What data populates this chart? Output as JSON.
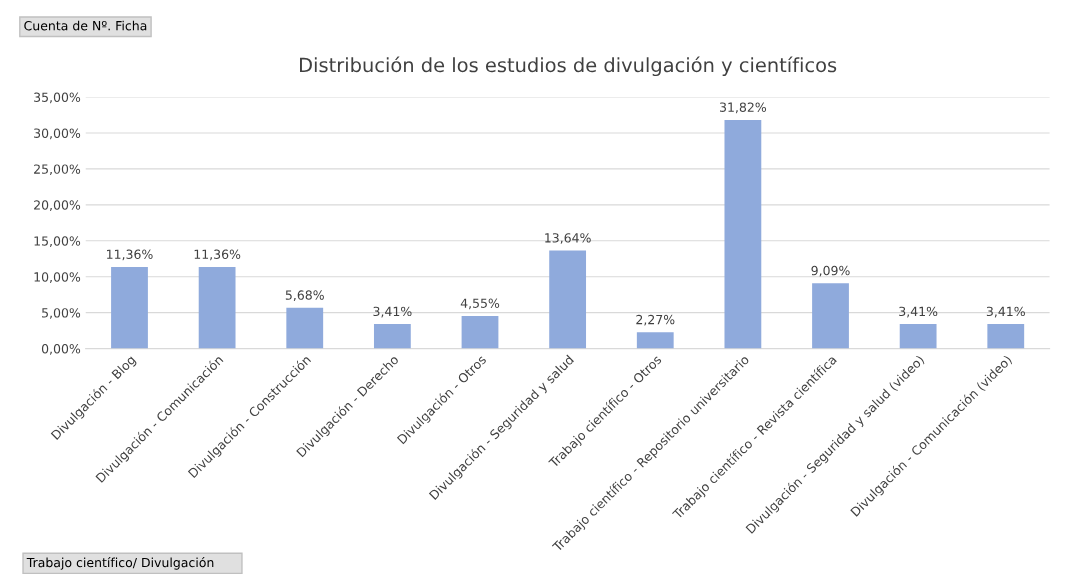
{
  "chart_data": {
    "type": "bar",
    "title": "Distribución de los estudios de divulgación y científicos",
    "categories": [
      "Divulgación - Blog",
      "Divulgación - Comunicación",
      "Divulgación - Construcción",
      "Divulgación - Derecho",
      "Divulgación - Otros",
      "Divulgación - Seguridad y salud",
      "Trabajo científico - Otros",
      "Trabajo científico - Repositorio universitario",
      "Trabajo científico - Revista científica",
      "Divulgación - Seguridad y salud (video)",
      "Divulgación - Comunicación (video)"
    ],
    "values": [
      11.36,
      11.36,
      5.68,
      3.41,
      4.55,
      13.64,
      2.27,
      31.82,
      9.09,
      3.41,
      3.41
    ],
    "value_labels": [
      "11,36%",
      "11,36%",
      "5,68%",
      "3,41%",
      "4,55%",
      "13,64%",
      "2,27%",
      "31,82%",
      "9,09%",
      "3,41%",
      "3,41%"
    ],
    "color": "#8faadc",
    "ylim": [
      0,
      35
    ],
    "yticks": [
      {
        "value": 0,
        "label": "0,00%"
      },
      {
        "value": 5,
        "label": "5,00%"
      },
      {
        "value": 10,
        "label": "10,00%"
      },
      {
        "value": 15,
        "label": "15,00%"
      },
      {
        "value": 20,
        "label": "20,00%"
      },
      {
        "value": 25,
        "label": "25,00%"
      },
      {
        "value": 30,
        "label": "30,00%"
      },
      {
        "value": 35,
        "label": "35,00%"
      }
    ],
    "grid": "y",
    "legend": false,
    "annotations": [
      "Cuenta de Nº. Ficha",
      "Trabajo científico/ Divulgación"
    ]
  }
}
